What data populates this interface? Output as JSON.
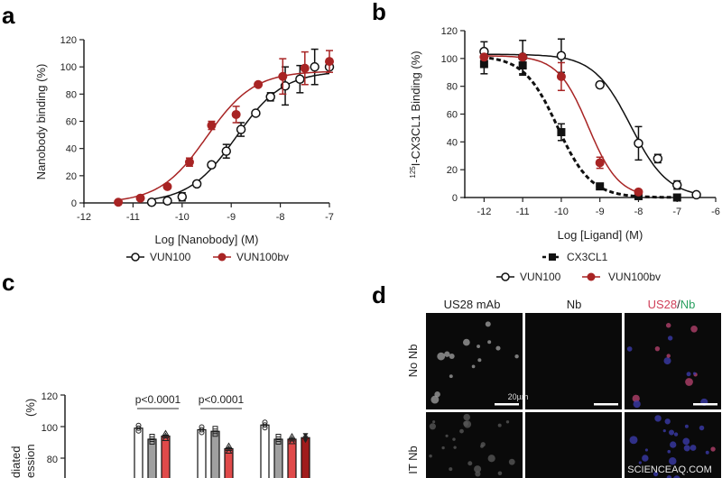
{
  "chart_data": [
    {
      "panel": "a",
      "type": "scatter",
      "xlabel": "Log [Nanobody] (M)",
      "ylabel": "Nanobody binding (%)",
      "xlim": [
        -12,
        -7
      ],
      "ylim": [
        0,
        120
      ],
      "xticks": [
        "-12",
        "-11",
        "-10",
        "-9",
        "-8",
        "-7"
      ],
      "yticks": [
        "0",
        "20",
        "40",
        "60",
        "80",
        "100",
        "120"
      ],
      "legend_position": "bottom",
      "series": [
        {
          "name": "VUN100",
          "color": "#111111",
          "marker": "open-circle",
          "fit": {
            "top": 97,
            "log_ec50": -8.9,
            "hill": 0.9
          },
          "x": [
            -10.62,
            -10.3,
            -10,
            -9.7,
            -9.4,
            -9.1,
            -8.8,
            -8.5,
            -8.2,
            -7.9,
            -7.6,
            -7.3,
            -7
          ],
          "y": [
            0.5,
            1.5,
            4.5,
            14,
            28,
            38,
            54,
            66,
            78,
            86,
            91,
            100,
            100
          ],
          "err": [
            0,
            0,
            3,
            0,
            0,
            5,
            5,
            0,
            3,
            14,
            10,
            13,
            0
          ]
        },
        {
          "name": "VUN100bv",
          "color": "#a82424",
          "marker": "filled-circle",
          "fit": {
            "top": 97,
            "log_ec50": -9.5,
            "hill": 0.9
          },
          "x": [
            -11.3,
            -10.85,
            -10.3,
            -9.85,
            -9.4,
            -8.9,
            -8.45,
            -7.95,
            -7.5,
            -7
          ],
          "y": [
            0.5,
            3.5,
            12,
            30,
            57,
            65,
            87,
            93,
            99,
            104
          ],
          "err": [
            0,
            0,
            0,
            3,
            3,
            6,
            0,
            13,
            12,
            8
          ]
        }
      ]
    },
    {
      "panel": "b",
      "type": "scatter",
      "xlabel": "Log [Ligand] (M)",
      "ylabel_sup": "125",
      "ylabel": "I-CX3CL1 Binding (%)",
      "xlim": [
        -12.5,
        -6
      ],
      "ylim": [
        0,
        120
      ],
      "xticks": [
        "-12",
        "-11",
        "-10",
        "-9",
        "-8",
        "-7",
        "-6"
      ],
      "yticks": [
        "0",
        "20",
        "40",
        "60",
        "80",
        "100",
        "120"
      ],
      "legend_position": "bottom",
      "series": [
        {
          "name": "CX3CL1",
          "color": "#111111",
          "marker": "filled-square",
          "line": "dashed",
          "fit": {
            "top": 102,
            "log_ic50": -10.1,
            "hill": 1
          },
          "x": [
            -12,
            -11,
            -10,
            -9,
            -8,
            -7
          ],
          "y": [
            96,
            95,
            47,
            8,
            1,
            0
          ],
          "err": [
            7,
            7,
            6,
            0,
            0,
            0
          ]
        },
        {
          "name": "VUN100",
          "color": "#111111",
          "marker": "open-circle",
          "fit": {
            "top": 103,
            "log_ic50": -8.2,
            "hill": 0.9
          },
          "x": [
            -12,
            -11,
            -10,
            -9,
            -8,
            -7.5,
            -7,
            -6.5
          ],
          "y": [
            105,
            101,
            102,
            81,
            39,
            28,
            9,
            2
          ],
          "err": [
            7,
            12,
            12,
            0,
            12,
            3,
            3,
            0
          ]
        },
        {
          "name": "VUN100bv",
          "color": "#a82424",
          "marker": "filled-circle",
          "fit": {
            "top": 102,
            "log_ic50": -9.3,
            "hill": 1.1
          },
          "x": [
            -12,
            -11,
            -10,
            -9,
            -8
          ],
          "y": [
            101,
            101,
            87,
            25,
            4
          ],
          "err": [
            0,
            0,
            10,
            4,
            0
          ]
        }
      ]
    },
    {
      "panel": "c",
      "type": "bar",
      "ylabel_fragments": [
        "diated",
        "ession",
        "(%)"
      ],
      "ylim_visible": [
        80,
        120
      ],
      "yticks": [
        "80",
        "100",
        "120"
      ],
      "groups": [
        {
          "bars": [
            {
              "value": 99,
              "color": "#ffffff"
            },
            {
              "value": 92,
              "color": "#a0a0a0"
            },
            {
              "value": 94,
              "color": "#e04a4a"
            }
          ],
          "annotation": "p<0.0001"
        },
        {
          "bars": [
            {
              "value": 98,
              "color": "#ffffff"
            },
            {
              "value": 97,
              "color": "#a0a0a0"
            },
            {
              "value": 86,
              "color": "#e04a4a"
            }
          ],
          "annotation": "p<0.0001"
        },
        {
          "bars": [
            {
              "value": 101,
              "color": "#ffffff"
            },
            {
              "value": 92,
              "color": "#a0a0a0"
            },
            {
              "value": 92,
              "color": "#e04a4a"
            },
            {
              "value": 93,
              "color": "#a01c1c"
            }
          ]
        }
      ]
    }
  ],
  "panel_d": {
    "label": "d",
    "columns": [
      "US28 mAb",
      "Nb",
      "US28",
      "/",
      "Nb"
    ],
    "rows": [
      "No Nb",
      "IT Nb"
    ],
    "scale_bar": "20µm",
    "colors": {
      "us28": "#d0405a",
      "nb": "#2aa060"
    }
  },
  "panel_labels": [
    "a",
    "b",
    "c"
  ],
  "watermark": "SCIENCEAQ.COM"
}
